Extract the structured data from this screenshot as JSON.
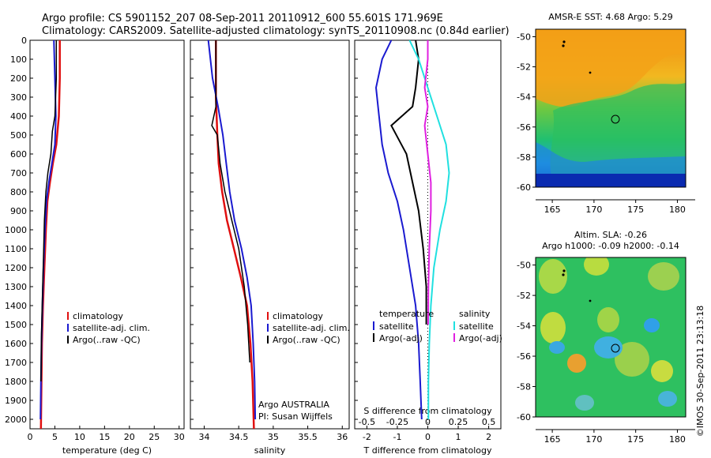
{
  "header": {
    "line1": "Argo profile: CS 5901152_207 08-Sep-2011 20110912_600 55.601S 171.969E",
    "line2": "Climatology: CARS2009. Satellite-adjusted climatology: synTS_20110908.nc (0.84d earlier)"
  },
  "footer": {
    "credit": "©IMOS 30-Sep-2011 23:13:18"
  },
  "colors": {
    "climatology": "#e01010",
    "satellite": "#1a1ad0",
    "argo": "#000000",
    "sal_satellite": "#20e0e0",
    "sal_argo": "#e020e0"
  },
  "legend_profile": [
    "climatology",
    "satellite-adj. clim.",
    "Argo(..raw -QC)"
  ],
  "legend_diff": {
    "temp_head": "temperature",
    "sal_head": "salinity",
    "temp_items": [
      "satellite",
      "Argo(-adj)"
    ],
    "sal_items": [
      "satellite",
      "Argo(-adj)"
    ]
  },
  "annotation": {
    "line1": "Argo AUSTRALIA",
    "line2": "PI: Susan Wijffels"
  },
  "map_sst_title": "AMSR-E SST: 4.68 Argo: 5.29",
  "map_sla_title1": "Altim. SLA: -0.26",
  "map_sla_title2": "Argo h1000: -0.09 h2000: -0.14",
  "chart_data": [
    {
      "type": "line",
      "xlabel": "temperature (deg C)",
      "ylabel": "",
      "xlim": [
        0,
        31
      ],
      "ylim": [
        2050,
        0
      ],
      "xticks": [
        0,
        5,
        10,
        15,
        20,
        25,
        30
      ],
      "yticks": [
        0,
        100,
        200,
        300,
        400,
        500,
        600,
        700,
        800,
        900,
        1000,
        1100,
        1200,
        1300,
        1400,
        1500,
        1600,
        1700,
        1800,
        1900,
        2000
      ],
      "series": [
        {
          "name": "climatology",
          "x": [
            6.0,
            6.0,
            5.8,
            5.3,
            4.6,
            4.0,
            3.5,
            3.2,
            2.9,
            2.6,
            2.4,
            2.3,
            2.2
          ],
          "y": [
            0,
            200,
            400,
            550,
            650,
            750,
            850,
            1000,
            1200,
            1400,
            1600,
            1800,
            2050
          ]
        },
        {
          "name": "satellite-adj. clim.",
          "x": [
            4.8,
            5.0,
            5.2,
            5.0,
            4.4,
            3.8,
            3.3,
            3.0,
            2.7,
            2.5,
            2.3,
            2.2,
            2.1
          ],
          "y": [
            0,
            200,
            400,
            550,
            650,
            750,
            850,
            1000,
            1200,
            1400,
            1600,
            1800,
            2000
          ]
        },
        {
          "name": "Argo(..raw -QC)",
          "x": [
            5.3,
            5.3,
            5.0,
            4.5,
            4.2,
            3.6,
            3.2,
            2.9,
            2.7,
            2.5,
            2.3,
            2.2
          ],
          "y": [
            0,
            200,
            400,
            480,
            600,
            700,
            800,
            950,
            1150,
            1350,
            1550,
            1800
          ]
        }
      ]
    },
    {
      "type": "line",
      "xlabel": "salinity",
      "ylabel": "",
      "xlim": [
        33.8,
        36.1
      ],
      "ylim": [
        2050,
        0
      ],
      "xticks": [
        34,
        34.5,
        35,
        35.5,
        36
      ],
      "series": [
        {
          "name": "climatology",
          "x": [
            34.17,
            34.17,
            34.17,
            34.19,
            34.21,
            34.26,
            34.33,
            34.43,
            34.53,
            34.62,
            34.67,
            34.7,
            34.72
          ],
          "y": [
            0,
            200,
            300,
            500,
            650,
            800,
            950,
            1100,
            1250,
            1400,
            1600,
            1800,
            2050
          ]
        },
        {
          "name": "satellite-adj. clim.",
          "x": [
            34.06,
            34.12,
            34.2,
            34.27,
            34.32,
            34.37,
            34.44,
            34.54,
            34.62,
            34.68,
            34.71,
            34.73,
            34.74
          ],
          "y": [
            0,
            200,
            350,
            500,
            650,
            800,
            950,
            1100,
            1250,
            1400,
            1600,
            1800,
            2000
          ]
        },
        {
          "name": "Argo(..raw -QC)",
          "x": [
            34.17,
            34.17,
            34.17,
            34.11,
            34.19,
            34.23,
            34.3,
            34.4,
            34.5,
            34.58,
            34.63,
            34.66
          ],
          "y": [
            0,
            200,
            350,
            450,
            500,
            650,
            800,
            950,
            1100,
            1300,
            1500,
            1700
          ]
        }
      ]
    },
    {
      "type": "line",
      "xlabel": "T difference from climatology",
      "ylabel": "",
      "top_axis_label": "S difference from climatology",
      "xlim": [
        -2.4,
        2.4
      ],
      "ylim": [
        2050,
        0
      ],
      "xticks": [
        -2,
        -1,
        0,
        1,
        2
      ],
      "top_ticks": [
        -0.5,
        -0.25,
        0,
        0.25,
        0.5
      ],
      "series": [
        {
          "name": "temperature satellite",
          "x": [
            -1.2,
            -1.5,
            -1.7,
            -1.6,
            -1.5,
            -1.3,
            -1.0,
            -0.8,
            -0.6,
            -0.4,
            -0.3,
            -0.25,
            -0.2
          ],
          "y": [
            0,
            100,
            250,
            400,
            550,
            700,
            850,
            1000,
            1200,
            1400,
            1600,
            1800,
            2000
          ]
        },
        {
          "name": "temperature Argo(-adj)",
          "x": [
            -0.4,
            -0.3,
            -0.4,
            -0.5,
            -1.2,
            -0.7,
            -0.5,
            -0.3,
            -0.15,
            -0.05,
            -0.05
          ],
          "y": [
            0,
            100,
            250,
            350,
            450,
            600,
            750,
            900,
            1100,
            1300,
            1500
          ]
        },
        {
          "name": "salinity satellite",
          "x": [
            -0.6,
            -0.3,
            0.0,
            0.3,
            0.6,
            0.7,
            0.6,
            0.4,
            0.2,
            0.1,
            0.05,
            0.02,
            0.02
          ],
          "y": [
            0,
            100,
            250,
            400,
            550,
            700,
            850,
            1000,
            1200,
            1400,
            1600,
            1800,
            2000
          ]
        },
        {
          "name": "salinity Argo(-adj)",
          "x": [
            0.0,
            0.0,
            -0.1,
            0.0,
            -0.1,
            0.0,
            0.1,
            0.1,
            0.05,
            0.02,
            0.01
          ],
          "y": [
            0,
            100,
            250,
            350,
            450,
            600,
            750,
            900,
            1100,
            1300,
            1500
          ]
        }
      ]
    },
    {
      "type": "heatmap",
      "title": "AMSR-E SST: 4.68 Argo: 5.29",
      "xlim": [
        163,
        181
      ],
      "ylim": [
        -60,
        -49.5
      ],
      "xticks": [
        165,
        170,
        175,
        180
      ],
      "yticks": [
        -50,
        -52,
        -54,
        -56,
        -58,
        -60
      ]
    },
    {
      "type": "heatmap",
      "title": "Altim. SLA: -0.26 / Argo h1000: -0.09 h2000: -0.14",
      "xlim": [
        163,
        181
      ],
      "ylim": [
        -60,
        -49.5
      ],
      "xticks": [
        165,
        170,
        175,
        180
      ],
      "yticks": [
        -50,
        -52,
        -54,
        -56,
        -58,
        -60
      ]
    }
  ]
}
